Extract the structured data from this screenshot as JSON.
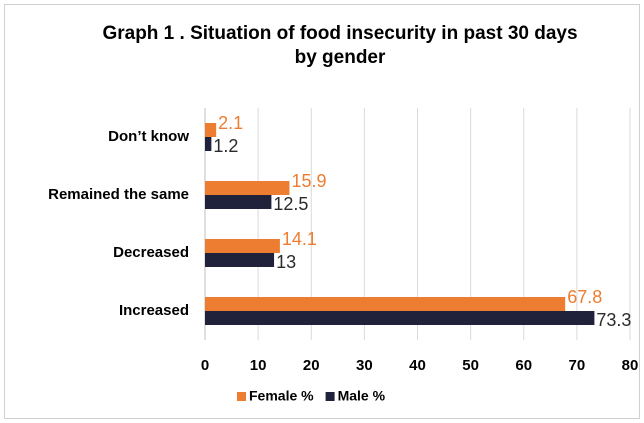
{
  "chart_data": {
    "type": "hbar",
    "title": "Graph 1 . Situation of food insecurity in past 30 days by gender",
    "categories": [
      "Don’t know",
      "Remained the same",
      "Decreased",
      "Increased"
    ],
    "series": [
      {
        "name": "Female %",
        "color": "#ED7D31",
        "values": [
          2.1,
          15.9,
          14.1,
          67.8
        ]
      },
      {
        "name": "Male %",
        "color": "#20213A",
        "values": [
          1.2,
          12.5,
          13,
          73.3
        ]
      }
    ],
    "xlim": [
      0,
      80
    ],
    "xticks": [
      0,
      10,
      20,
      30,
      40,
      50,
      60,
      70,
      80
    ],
    "grid": true,
    "legend": "bottom"
  }
}
